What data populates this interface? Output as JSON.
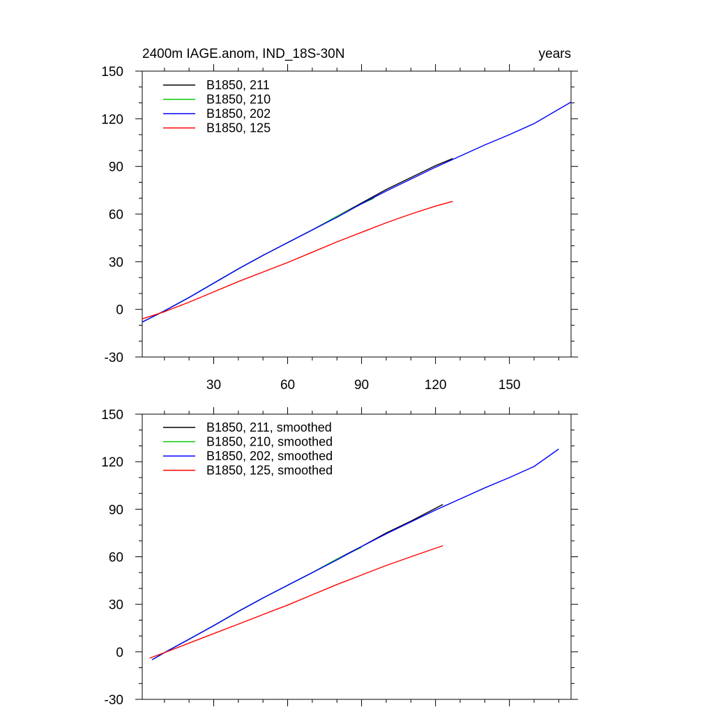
{
  "chart_data": [
    {
      "type": "line",
      "title": "2400m IAGE.anom, IND_18S-30N",
      "units": "years",
      "xlim": [
        1,
        175
      ],
      "ylim": [
        -30,
        150
      ],
      "xticks": [
        30,
        60,
        90,
        120,
        150
      ],
      "xtick_labels": [
        "30",
        "60",
        "90",
        "120",
        "150"
      ],
      "yticks": [
        -30,
        0,
        30,
        60,
        90,
        120,
        150
      ],
      "ytick_labels": [
        "-30",
        "0",
        "30",
        "60",
        "90",
        "120",
        "150"
      ],
      "legend_position": "top-left",
      "series": [
        {
          "name": "B1850, 211",
          "color": "#000000",
          "x": [
            1,
            10,
            20,
            30,
            40,
            50,
            60,
            70,
            80,
            90,
            100,
            110,
            120,
            127
          ],
          "y": [
            -8,
            -1,
            7.5,
            16.5,
            25.5,
            34,
            42,
            50,
            58.5,
            67,
            75.5,
            83,
            90.5,
            95
          ]
        },
        {
          "name": "B1850, 210",
          "color": "#00cc00",
          "x": [
            1,
            10,
            20,
            30,
            40,
            50,
            60,
            70,
            80,
            90,
            95
          ],
          "y": [
            -8,
            -1,
            7.5,
            16.5,
            25.5,
            34,
            42,
            50,
            58.5,
            66.5,
            70
          ]
        },
        {
          "name": "B1850, 202",
          "color": "#0000ff",
          "x": [
            1,
            10,
            20,
            30,
            40,
            50,
            60,
            70,
            80,
            90,
            100,
            110,
            120,
            130,
            140,
            150,
            160,
            175
          ],
          "y": [
            -8,
            -1,
            7.5,
            16.5,
            25.5,
            34,
            42,
            50,
            58,
            66.5,
            74.5,
            82,
            89.5,
            96.5,
            103.5,
            110,
            117,
            130.5
          ]
        },
        {
          "name": "B1850, 125",
          "color": "#ff0000",
          "x": [
            1,
            10,
            20,
            30,
            40,
            50,
            60,
            70,
            80,
            90,
            100,
            110,
            120,
            127
          ],
          "y": [
            -6,
            -1.5,
            4.5,
            11,
            17.5,
            23.5,
            29.5,
            36,
            42.5,
            48.5,
            54.5,
            60,
            65,
            68
          ]
        }
      ]
    },
    {
      "type": "line",
      "title": "",
      "xlim": [
        1,
        175
      ],
      "ylim": [
        -30,
        150
      ],
      "yticks": [
        -30,
        0,
        30,
        60,
        90,
        120,
        150
      ],
      "ytick_labels": [
        "-30",
        "0",
        "30",
        "60",
        "90",
        "120",
        "150"
      ],
      "xticks": [
        30,
        60,
        90,
        120,
        150
      ],
      "legend_position": "top-left",
      "series": [
        {
          "name": "B1850, 211, smoothed",
          "color": "#000000",
          "x": [
            5,
            10,
            20,
            30,
            40,
            50,
            60,
            70,
            80,
            90,
            100,
            110,
            123
          ],
          "y": [
            -5,
            -0.5,
            8,
            16.5,
            25.5,
            34,
            42,
            50,
            58.5,
            66.5,
            75,
            82.5,
            93
          ]
        },
        {
          "name": "B1850, 210, smoothed",
          "color": "#00cc00",
          "x": [
            5,
            10,
            20,
            30,
            40,
            50,
            60,
            70,
            80,
            90
          ],
          "y": [
            -5,
            -0.5,
            8,
            16.5,
            25.5,
            34,
            42,
            50,
            58.5,
            66
          ]
        },
        {
          "name": "B1850, 202, smoothed",
          "color": "#0000ff",
          "x": [
            5,
            10,
            20,
            30,
            40,
            50,
            60,
            70,
            80,
            90,
            100,
            110,
            120,
            130,
            140,
            150,
            160,
            170
          ],
          "y": [
            -5,
            -0.5,
            8,
            16.5,
            25.5,
            34,
            42,
            50,
            58,
            66.5,
            74.5,
            82,
            89.5,
            96.5,
            103.5,
            110,
            117,
            128
          ]
        },
        {
          "name": "B1850, 125, smoothed",
          "color": "#ff0000",
          "x": [
            4,
            10,
            20,
            30,
            40,
            50,
            60,
            70,
            80,
            90,
            100,
            110,
            123
          ],
          "y": [
            -4,
            -0.5,
            5.5,
            11.5,
            17.5,
            23.5,
            29.5,
            36,
            42.5,
            48.5,
            54.5,
            60,
            67
          ]
        }
      ]
    }
  ]
}
